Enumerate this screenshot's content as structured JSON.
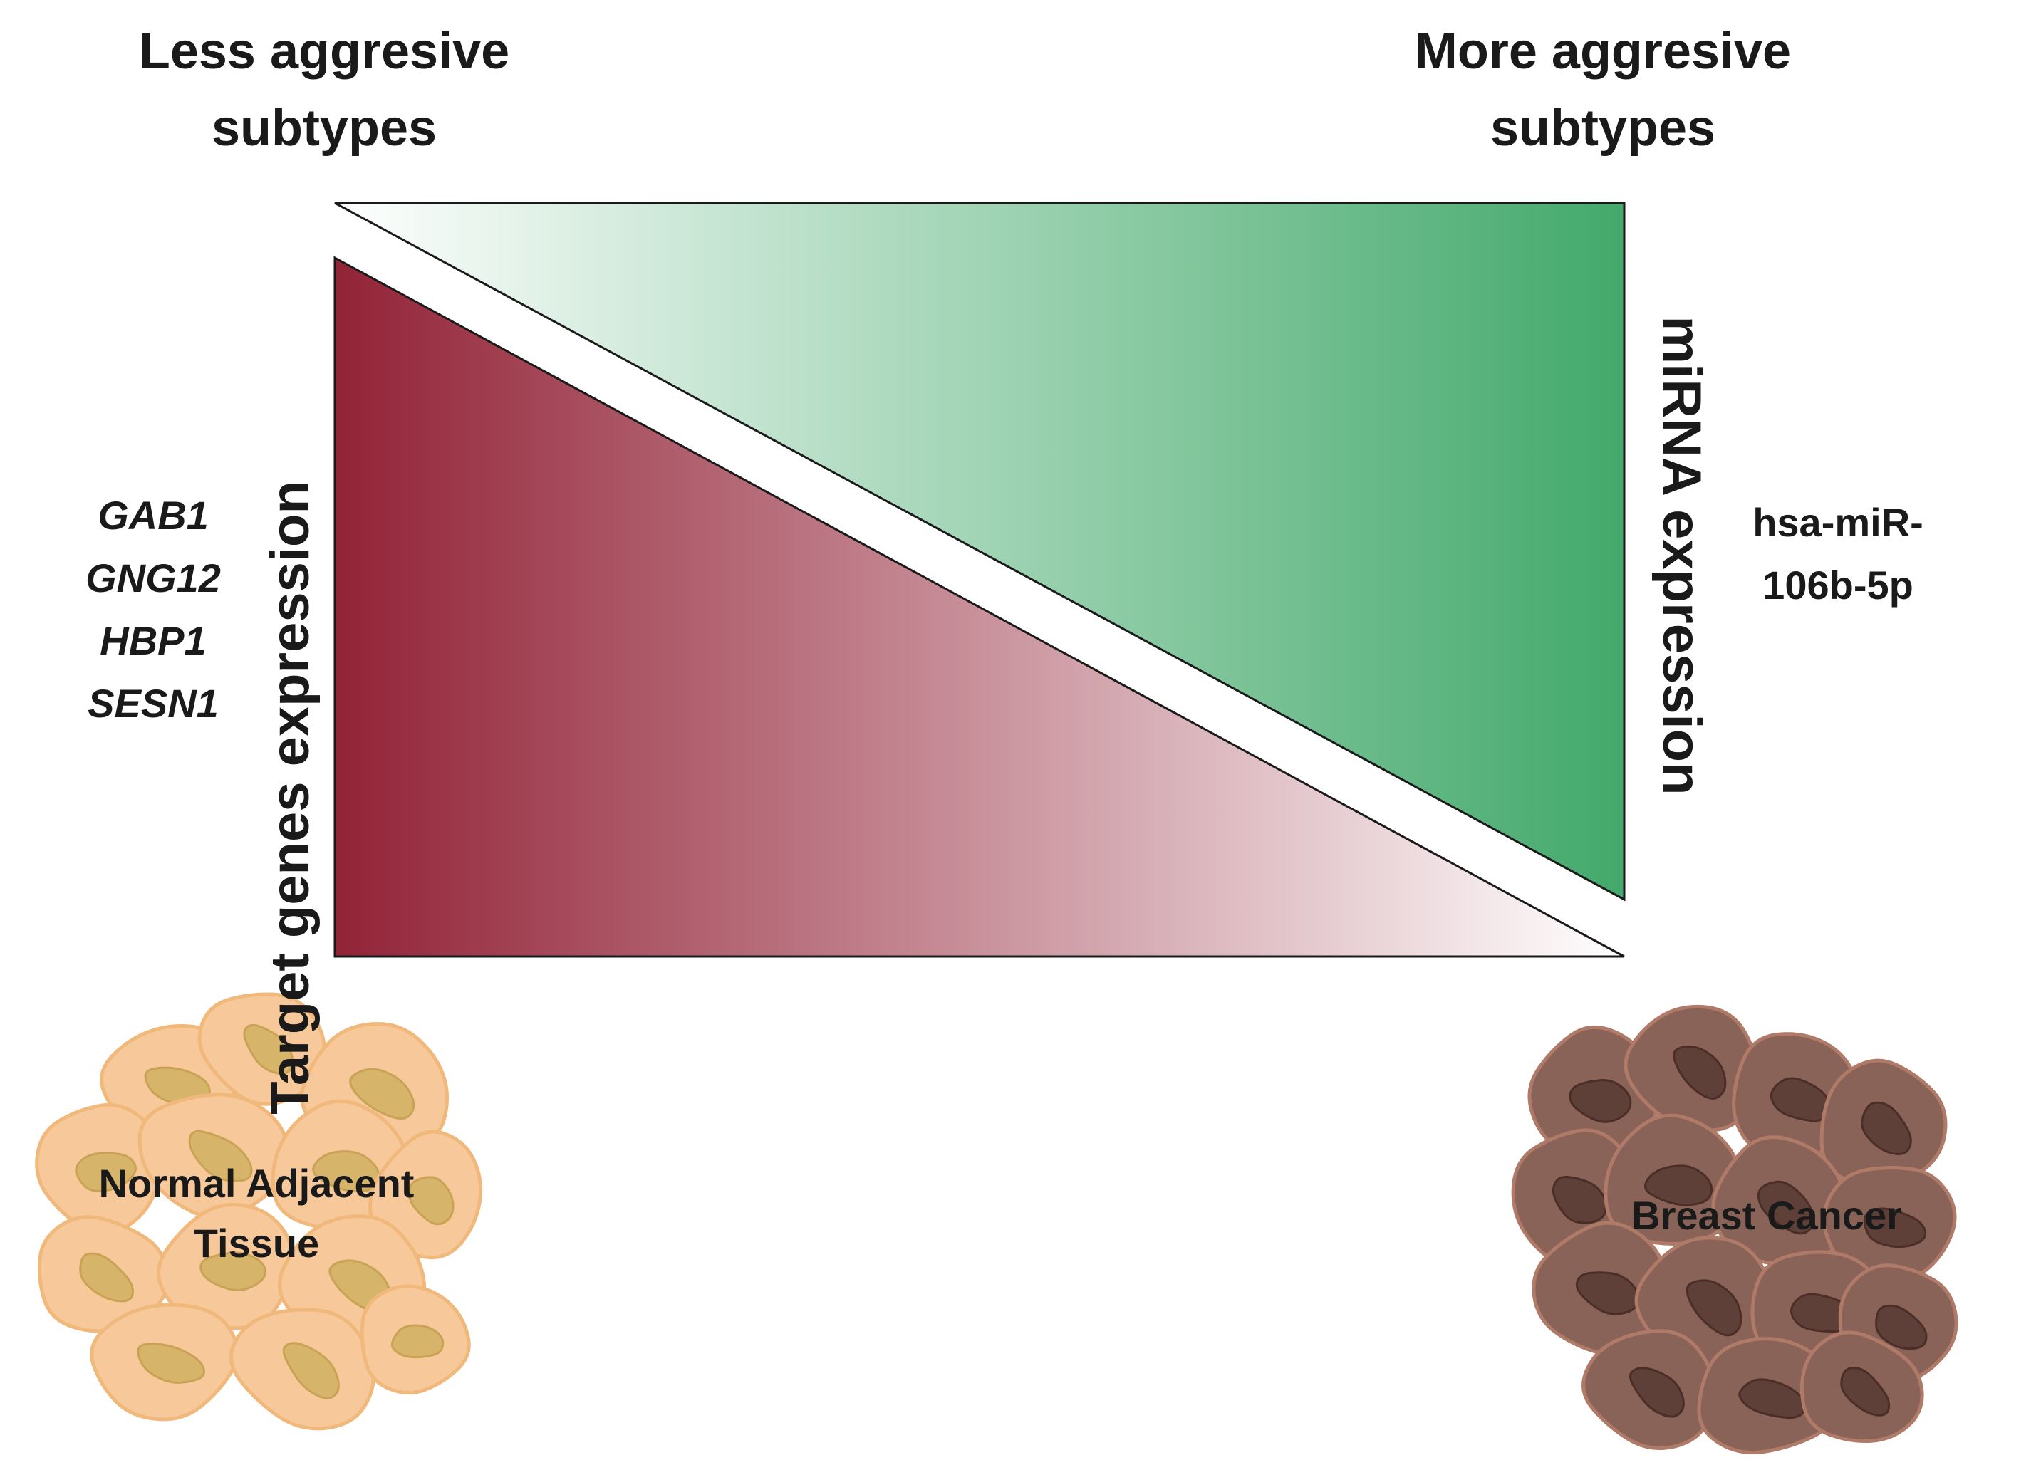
{
  "header_left": {
    "line1": "Less aggresive",
    "line2": "subtypes"
  },
  "header_right": {
    "line1": "More aggresive",
    "line2": "subtypes"
  },
  "left_axis_label": "Target genes expression",
  "right_axis_label": "miRNA expression",
  "target_genes": [
    "GAB1",
    "GNG12",
    "HBP1",
    "SESN1"
  ],
  "mirna": {
    "line1": "hsa-miR-",
    "line2": "106b-5p"
  },
  "normal_tissue": {
    "line1": "Normal Adjacent",
    "line2": "Tissue"
  },
  "cancer_tissue": {
    "line1": "Breast Cancer"
  },
  "colors": {
    "green_dark": "#43a96b",
    "green_light": "#ffffff",
    "red_dark": "#922337",
    "red_light": "#ffffff",
    "normal_cell": "#f6c89a",
    "normal_nucleus": "#d6b56a",
    "cancer_cell": "#8a6358",
    "cancer_nucleus": "#5e4038"
  }
}
